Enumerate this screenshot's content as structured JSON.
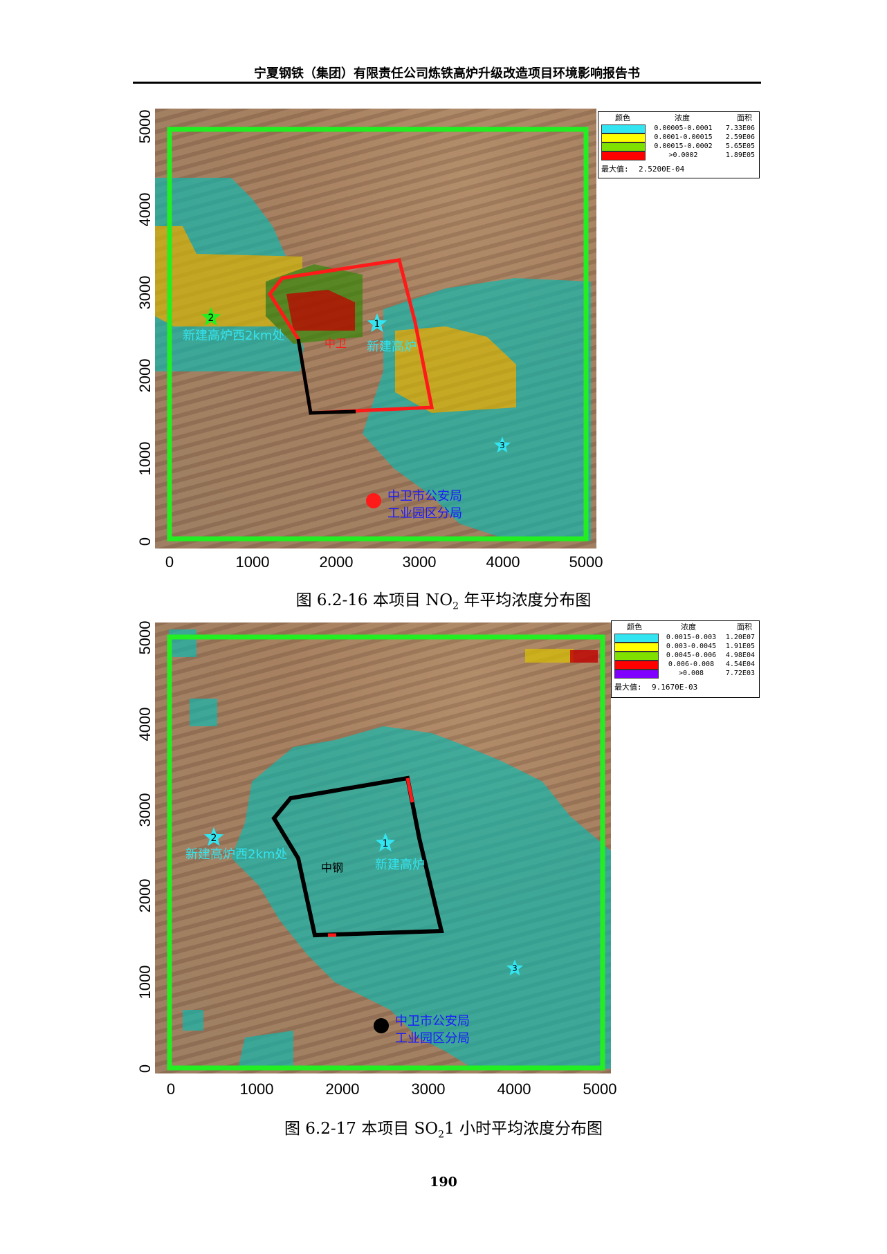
{
  "header": {
    "title": "宁夏钢铁（集团）有限责任公司炼铁高炉升级改造项目环境影响报告书"
  },
  "figures": [
    {
      "caption_prefix": "图 6.2-16  本项目 NO",
      "caption_sub": "2",
      "caption_suffix": " 年平均浓度分布图",
      "y_ticks": [
        "0",
        "1000",
        "2000",
        "3000",
        "4000",
        "5000"
      ],
      "x_ticks": [
        "0",
        "1000",
        "2000",
        "3000",
        "4000",
        "5000"
      ],
      "legend": {
        "col_color": "颜色",
        "col_conc": "浓度",
        "col_area": "面积",
        "rows": [
          {
            "color": "#33e5f0",
            "range": "0.00005-0.0001",
            "area": "7.33E06"
          },
          {
            "color": "#ffff00",
            "range": "0.0001-0.00015",
            "area": "2.59E06"
          },
          {
            "color": "#80e000",
            "range": "0.00015-0.0002",
            "area": "5.65E05"
          },
          {
            "color": "#ff0000",
            "range": ">0.0002",
            "area": "1.89E05"
          }
        ],
        "max_label": "最大值:",
        "max_value": "2.5200E-04"
      },
      "markers": {
        "star1": "1",
        "star1_label": "新建高炉",
        "star2": "2",
        "star2_label": "新建高炉西2km处",
        "star3": "3",
        "site_label": "中卫",
        "poi_line1": "中卫市公安局",
        "poi_line2": "工业园区分局",
        "poi_color": "#ff1a1a"
      }
    },
    {
      "caption_prefix": "图 6.2-17  本项目 SO",
      "caption_sub": "2",
      "caption_suffix": "1 小时平均浓度分布图",
      "y_ticks": [
        "0",
        "1000",
        "2000",
        "3000",
        "4000",
        "5000"
      ],
      "x_ticks": [
        "0",
        "1000",
        "2000",
        "3000",
        "4000",
        "5000"
      ],
      "legend": {
        "col_color": "颜色",
        "col_conc": "浓度",
        "col_area": "面积",
        "rows": [
          {
            "color": "#33e5f0",
            "range": "0.0015-0.003",
            "area": "1.20E07"
          },
          {
            "color": "#ffff00",
            "range": "0.003-0.0045",
            "area": "1.91E05"
          },
          {
            "color": "#80e000",
            "range": "0.0045-0.006",
            "area": "4.98E04"
          },
          {
            "color": "#ff0000",
            "range": "0.006-0.008",
            "area": "4.54E04"
          },
          {
            "color": "#8000ff",
            "range": ">0.008",
            "area": "7.72E03"
          }
        ],
        "max_label": "最大值:",
        "max_value": "9.1670E-03"
      },
      "markers": {
        "star1": "1",
        "star1_label": "新建高炉",
        "star2": "2",
        "star2_label": "新建高炉西2km处",
        "star3": "3",
        "site_label": "中钢",
        "poi_line1": "中卫市公安局",
        "poi_line2": "工业园区分局",
        "poi_color": "#000000"
      }
    }
  ],
  "page_number": "190"
}
